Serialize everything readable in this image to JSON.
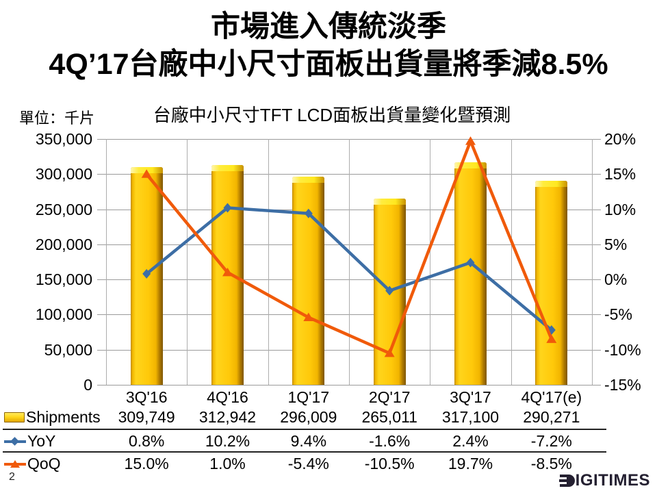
{
  "slide": {
    "title_line1": "市場進入傳統淡季",
    "title_line2": "4Q’17台廠中小尺寸面板出貨量將季減8.5%",
    "page_number": "2",
    "logo_text": "IGITIMES"
  },
  "chart_data": {
    "type": "bar",
    "subtype": "combo-bar-line",
    "title": "台廠中小尺寸TFT LCD面板出貨量變化暨預測",
    "unit_label": "單位：千片",
    "categories": [
      "3Q'16",
      "4Q'16",
      "1Q'17",
      "2Q'17",
      "3Q'17",
      "4Q'17(e)"
    ],
    "series": [
      {
        "name": "Shipments",
        "type": "bar",
        "axis": "left",
        "values": [
          309749,
          312942,
          296009,
          265011,
          317100,
          290271
        ]
      },
      {
        "name": "YoY",
        "type": "line",
        "marker": "diamond",
        "axis": "right",
        "values": [
          0.8,
          10.2,
          9.4,
          -1.6,
          2.4,
          -7.2
        ]
      },
      {
        "name": "QoQ",
        "type": "line",
        "marker": "triangle",
        "axis": "right",
        "values": [
          15.0,
          1.0,
          -5.4,
          -10.5,
          19.7,
          -8.5
        ]
      }
    ],
    "left_axis": {
      "min": 0,
      "max": 350000,
      "step": 50000,
      "tick_labels": [
        "350,000",
        "300,000",
        "250,000",
        "200,000",
        "150,000",
        "100,000",
        "50,000",
        "0"
      ]
    },
    "right_axis": {
      "min": -15,
      "max": 20,
      "step": 5,
      "tick_labels": [
        "20%",
        "15%",
        "10%",
        "5%",
        "0%",
        "-5%",
        "-10%",
        "-15%"
      ]
    },
    "grid": true,
    "legend_position": "table-left"
  },
  "table": {
    "rows": [
      {
        "label": "Shipments",
        "icon": "bar-legend-icon",
        "cells": [
          "309,749",
          "312,942",
          "296,009",
          "265,011",
          "317,100",
          "290,271"
        ]
      },
      {
        "label": "YoY",
        "icon": "line-diamond-legend-icon",
        "cells": [
          "0.8%",
          "10.2%",
          "9.4%",
          "-1.6%",
          "2.4%",
          "-7.2%"
        ]
      },
      {
        "label": "QoQ",
        "icon": "line-triangle-legend-icon",
        "cells": [
          "15.0%",
          "1.0%",
          "-5.4%",
          "-10.5%",
          "19.7%",
          "-8.5%"
        ]
      }
    ]
  },
  "colors": {
    "bar_fill": "#FFC90A",
    "bar_top_highlight": "#FFE94D",
    "bar_edge_dark": "#7E5600",
    "yoy_line": "#3D6EA5",
    "qoq_line": "#F05A0A",
    "gridline": "#9B9B9B",
    "text": "#000000",
    "logo": "#242031"
  }
}
